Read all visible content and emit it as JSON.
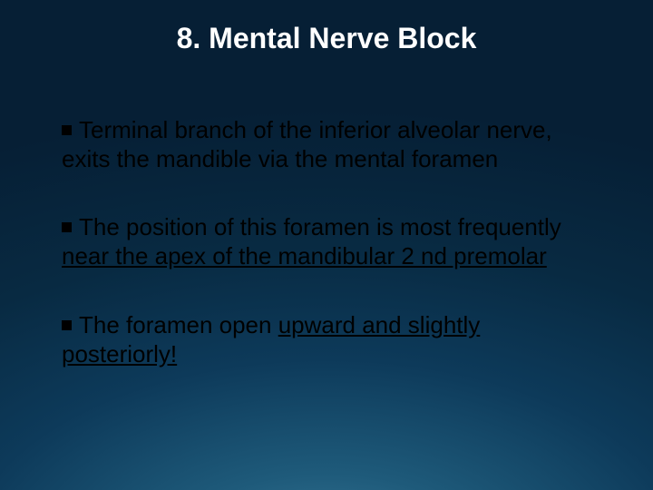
{
  "slide": {
    "title": "8. Mental Nerve Block",
    "bullets": [
      {
        "pre": "Terminal branch of the inferior alveolar nerve, exits the mandible via the mental foramen",
        "underline": "",
        "post": ""
      },
      {
        "pre": "The position of this foramen is most frequently ",
        "underline": "near the apex of the mandibular 2 nd premolar",
        "post": ""
      },
      {
        "pre": "The foramen open ",
        "underline": "upward and slightly posteriorly!",
        "post": ""
      }
    ],
    "background_gradient": {
      "inner": "#3a7a9a",
      "mid": "#0d3a5a",
      "outer": "#061f35"
    },
    "title_color": "#ffffff",
    "text_color": "#000000",
    "bullet_color": "#000000",
    "title_fontsize": 32,
    "body_fontsize": 26
  }
}
